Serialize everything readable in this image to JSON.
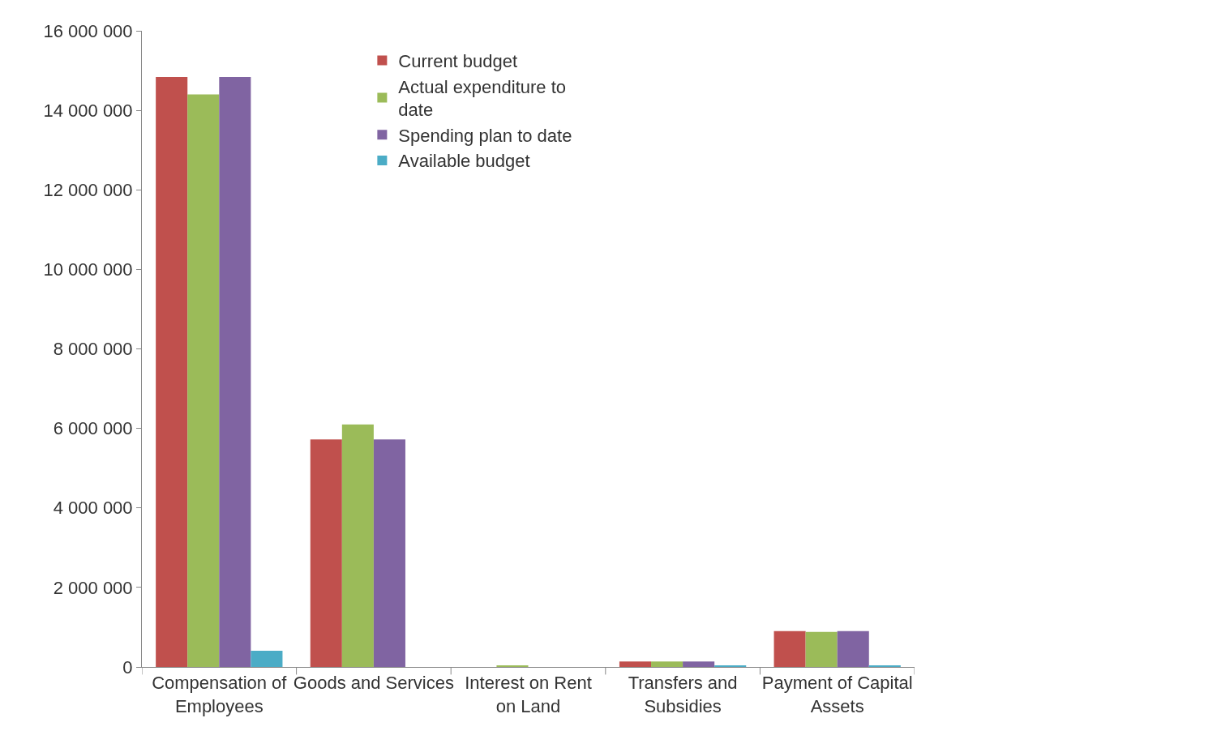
{
  "chart_data": {
    "type": "bar",
    "categories": [
      "Compensation of Employees",
      "Goods and Services",
      "Interest on Rent on Land",
      "Transfers and Subsidies",
      "Payment of Capital Assets"
    ],
    "series": [
      {
        "name": "Current budget",
        "color": "#c0504d",
        "values": [
          14840000,
          5720000,
          0,
          140000,
          900000
        ]
      },
      {
        "name": "Actual expenditure to date",
        "color": "#9bbb59",
        "values": [
          14400000,
          6100000,
          40000,
          140000,
          880000
        ]
      },
      {
        "name": "Spending plan to date",
        "color": "#8064a2",
        "values": [
          14840000,
          5720000,
          0,
          140000,
          900000
        ]
      },
      {
        "name": "Available budget",
        "color": "#4bacc6",
        "values": [
          410000,
          0,
          0,
          40000,
          40000
        ]
      }
    ],
    "ylim": [
      0,
      16000000
    ],
    "yticks": [
      {
        "value": 0,
        "label": "0"
      },
      {
        "value": 2000000,
        "label": "2 000 000"
      },
      {
        "value": 4000000,
        "label": "4 000 000"
      },
      {
        "value": 6000000,
        "label": "6 000 000"
      },
      {
        "value": 8000000,
        "label": "8 000 000"
      },
      {
        "value": 10000000,
        "label": "10 000 000"
      },
      {
        "value": 12000000,
        "label": "12 000 000"
      },
      {
        "value": 14000000,
        "label": "14 000 000"
      },
      {
        "value": 16000000,
        "label": "16 000 000"
      }
    ],
    "grid": false,
    "legend": "top"
  }
}
